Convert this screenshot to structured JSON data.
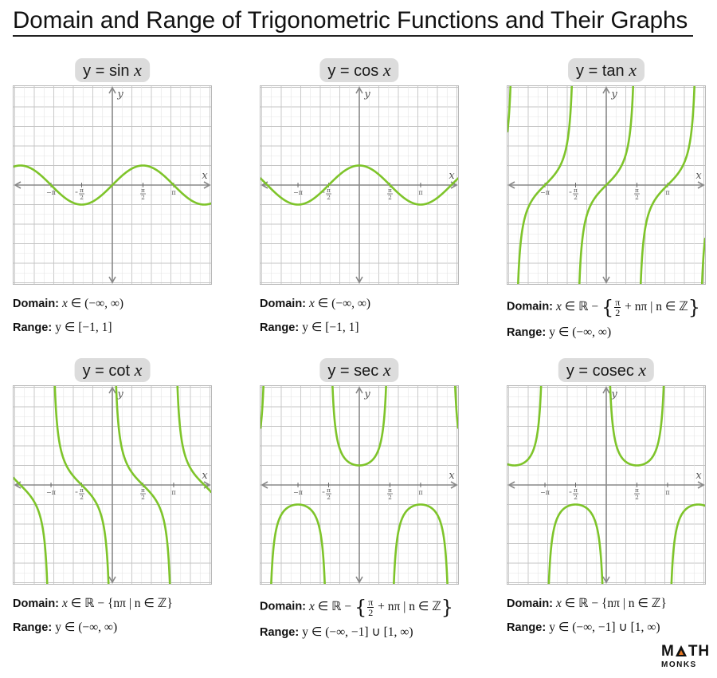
{
  "page": {
    "title": "Domain and Range of Trigonometric Functions and Their Graphs"
  },
  "colors": {
    "curve": "#7ec42a",
    "axis": "#888888",
    "grid_major": "#c4c4c4",
    "grid_minor": "#e4e4e4",
    "pill_bg": "#dcdcdc",
    "logo_accent": "#e87722"
  },
  "tick_labels": {
    "neg_pi": "−π",
    "neg_half_pi_num": "π",
    "neg_half_pi_den": "2",
    "half_pi_num": "π",
    "half_pi_den": "2",
    "pi": "π",
    "x_axis": "x",
    "y_axis": "y"
  },
  "panels": [
    {
      "id": "sin",
      "label_prefix": "y = sin ",
      "label_var": "x",
      "domain_label": "Domain:",
      "domain_var": "x",
      "domain_text": " ∈ (−∞, ∞)",
      "range_label": "Range:",
      "range_text": "y ∈ [−1, 1]"
    },
    {
      "id": "cos",
      "label_prefix": "y = cos ",
      "label_var": "x",
      "domain_label": "Domain:",
      "domain_var": "x",
      "domain_text": " ∈ (−∞, ∞)",
      "range_label": "Range:",
      "range_text": "y ∈ [−1, 1]"
    },
    {
      "id": "tan",
      "label_prefix": "y = tan ",
      "label_var": "x",
      "domain_label": "Domain:",
      "domain_var": "x",
      "domain_pre": " ∈ ℝ − ",
      "domain_frac_num": "π",
      "domain_frac_den": "2",
      "domain_post": " + nπ | n ∈ ℤ",
      "range_label": "Range:",
      "range_text": "y ∈ (−∞, ∞)"
    },
    {
      "id": "cot",
      "label_prefix": "y = cot ",
      "label_var": "x",
      "domain_label": "Domain:",
      "domain_var": "x",
      "domain_text": " ∈ ℝ − {nπ | n ∈ ℤ}",
      "range_label": "Range:",
      "range_text": "y ∈ (−∞, ∞)"
    },
    {
      "id": "sec",
      "label_prefix": "y = sec ",
      "label_var": "x",
      "domain_label": "Domain:",
      "domain_var": "x",
      "domain_pre": " ∈ ℝ − ",
      "domain_frac_num": "π",
      "domain_frac_den": "2",
      "domain_post": " + nπ | n ∈ ℤ",
      "range_label": "Range:",
      "range_text": "y ∈ (−∞, −1] ∪ [1,  ∞)"
    },
    {
      "id": "cosec",
      "label_prefix": "y = cosec ",
      "label_var": "x",
      "domain_label": "Domain:",
      "domain_var": "x",
      "domain_text": " ∈ ℝ − {nπ | n ∈ ℤ}",
      "range_label": "Range:",
      "range_text": "y ∈ (−∞, −1] ∪ [1,  ∞)"
    }
  ],
  "logo": {
    "text_top_left": "M",
    "text_top_right": "TH",
    "text_bottom": "MONKS"
  }
}
